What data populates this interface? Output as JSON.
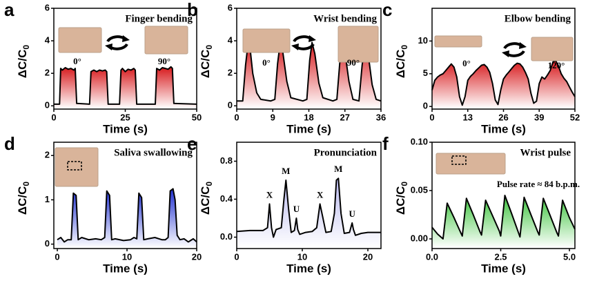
{
  "chart_data": [
    {
      "type": "line",
      "panel": "a",
      "title": "Finger bending",
      "xlabel": "Time (s)",
      "ylabel": {
        "text": "ΔC/C",
        "sub": "0"
      },
      "color": "#d7191c",
      "xlim": [
        0,
        50
      ],
      "xticks": [
        0,
        25,
        50
      ],
      "ylim": [
        -0.2,
        6
      ],
      "yticks": [
        0,
        2,
        4,
        6
      ],
      "annotations": [
        {
          "text": "0°"
        },
        {
          "text": "90°"
        }
      ],
      "x": [
        0,
        2,
        2.4,
        3,
        4,
        5,
        6,
        7,
        7.5,
        8,
        12.5,
        13,
        14,
        15,
        16,
        17,
        18,
        18.5,
        19,
        23,
        23.5,
        24,
        25,
        26,
        27,
        28,
        28.5,
        29,
        35.5,
        36,
        37,
        38,
        39,
        40,
        41,
        41.5,
        42,
        50
      ],
      "values": [
        0.1,
        0.1,
        2.3,
        2.2,
        2.35,
        2.25,
        2.3,
        2.2,
        2.3,
        0.15,
        0.1,
        2.1,
        2.2,
        2.1,
        2.2,
        2.15,
        2.2,
        2.1,
        0.1,
        0.1,
        2.2,
        2.3,
        2.1,
        2.25,
        2.2,
        2.3,
        2.2,
        0.1,
        0.1,
        2.3,
        2.2,
        2.35,
        2.3,
        2.25,
        2.4,
        2.3,
        0.15,
        0.1
      ]
    },
    {
      "type": "line",
      "panel": "b",
      "title": "Wrist bending",
      "xlabel": "Time (s)",
      "ylabel": {
        "text": "ΔC/C",
        "sub": "0"
      },
      "color": "#d7191c",
      "xlim": [
        0,
        36
      ],
      "xticks": [
        0,
        9,
        18,
        27,
        36
      ],
      "ylim": [
        -0.2,
        6
      ],
      "yticks": [
        0,
        2,
        4,
        6
      ],
      "annotations": [
        {
          "text": "0°"
        },
        {
          "text": "90°"
        }
      ],
      "x": [
        0,
        1.5,
        2.2,
        2.8,
        3.3,
        4,
        5,
        6,
        8.5,
        9.5,
        10.2,
        10.8,
        11.5,
        12.5,
        13.5,
        16.5,
        17.5,
        18.2,
        18.8,
        19.5,
        20.5,
        21.5,
        24,
        25,
        25.7,
        26.3,
        27,
        28,
        29,
        30.5,
        31.3,
        32,
        32.8,
        33.8,
        34.8,
        36
      ],
      "values": [
        0.3,
        0.3,
        2.5,
        3.8,
        3.6,
        2,
        0.8,
        0.4,
        0.3,
        0.4,
        2.6,
        3.8,
        3.3,
        1.5,
        0.5,
        0.3,
        0.4,
        2.8,
        3.9,
        3.2,
        1.4,
        0.5,
        0.3,
        0.4,
        2.6,
        3.8,
        3.3,
        1.5,
        0.4,
        0.3,
        2.5,
        3.8,
        3.2,
        1.3,
        0.4,
        0.3
      ]
    },
    {
      "type": "line",
      "panel": "c",
      "title": "Elbow bending",
      "xlabel": "Time (s)",
      "ylabel": {
        "text": "ΔC/C",
        "sub": "0"
      },
      "color": "#d7191c",
      "xlim": [
        0,
        52
      ],
      "xticks": [
        0,
        13,
        26,
        39,
        52
      ],
      "ylim": [
        -0.4,
        15
      ],
      "yticks": [
        0,
        5,
        10
      ],
      "annotations": [
        {
          "text": "0°"
        },
        {
          "text": "120°"
        }
      ],
      "x": [
        0,
        1,
        2,
        3,
        4,
        5,
        6,
        7,
        8,
        9,
        10,
        11,
        12,
        13,
        14,
        15,
        16,
        17,
        18,
        19,
        20,
        21,
        22,
        23,
        24,
        25,
        26,
        27,
        28,
        29,
        30,
        31,
        32,
        33,
        34,
        35,
        36,
        37,
        38,
        39,
        40,
        41,
        42,
        43,
        44,
        45,
        46,
        47,
        48,
        49,
        50,
        51,
        52
      ],
      "values": [
        2.5,
        4,
        4.5,
        4.8,
        5,
        5.5,
        6,
        6.5,
        6,
        4.5,
        1.5,
        0.2,
        1.5,
        4,
        4.6,
        5,
        5.5,
        5.9,
        6.3,
        6.4,
        6,
        5.2,
        3.5,
        1,
        0.3,
        2.5,
        4.2,
        4.8,
        5.3,
        5.8,
        6.3,
        6.6,
        6.5,
        6,
        5.2,
        4.2,
        2,
        0.5,
        0.8,
        3.5,
        4.5,
        4.2,
        4.8,
        5.5,
        6.8,
        7,
        6.2,
        5,
        4.3,
        3.8,
        3,
        2.2,
        1.5
      ]
    },
    {
      "type": "line",
      "panel": "d",
      "title": "Saliva swallowing",
      "xlabel": "Time (s)",
      "ylabel": {
        "text": "ΔC/C",
        "sub": "0"
      },
      "color": "#1f2fd0",
      "xlim": [
        -0.5,
        20
      ],
      "xticks": [
        0,
        10,
        20
      ],
      "ylim": [
        -0.1,
        2.3
      ],
      "yticks": [
        0,
        1,
        2
      ],
      "annotations": [],
      "x": [
        0,
        0.5,
        1,
        1.5,
        2,
        2.3,
        2.7,
        3,
        3.5,
        4.5,
        5.5,
        6.3,
        6.8,
        7.1,
        7.5,
        7.8,
        8.3,
        9.5,
        10.5,
        11,
        11.4,
        11.7,
        12.1,
        12.4,
        13,
        14,
        15,
        15.5,
        15.9,
        16.2,
        16.6,
        16.9,
        17.2,
        17.6,
        18.2,
        18.8,
        19.5,
        20
      ],
      "values": [
        0.1,
        0.15,
        0.05,
        0.1,
        0.1,
        1.15,
        1.1,
        0.1,
        0.15,
        0.1,
        0.12,
        0.1,
        0.15,
        1.2,
        1.1,
        0.1,
        0.12,
        0.08,
        0.1,
        0.15,
        0.12,
        1.15,
        1.05,
        0.1,
        0.12,
        0.15,
        0.1,
        0.1,
        0.15,
        1.2,
        1.25,
        1.0,
        0.2,
        0.1,
        0.12,
        0.05,
        0.12,
        0.05
      ]
    },
    {
      "type": "line",
      "panel": "e",
      "title": "Pronunciation",
      "xlabel": "Time (s)",
      "ylabel": {
        "text": "ΔC/C",
        "sub": "0"
      },
      "color": "#b9b9ee",
      "xlim": [
        0,
        22
      ],
      "xticks": [
        0,
        10,
        20
      ],
      "ylim": [
        -0.12,
        1.0
      ],
      "yticks": [
        {
          "value": 0,
          "label": "0.0"
        },
        {
          "value": 0.4,
          "label": "0.4"
        },
        {
          "value": 0.8,
          "label": "0.8"
        }
      ],
      "annotations": [
        {
          "text": "X",
          "x": 5
        },
        {
          "text": "M",
          "x": 7.5
        },
        {
          "text": "U",
          "x": 9.1
        },
        {
          "text": "X",
          "x": 12.7
        },
        {
          "text": "M",
          "x": 15.5
        },
        {
          "text": "U",
          "x": 17.6
        }
      ],
      "x": [
        0,
        2,
        4,
        4.7,
        5,
        5.3,
        5.6,
        6,
        6.8,
        7.2,
        7.5,
        7.9,
        8.3,
        8.8,
        9.1,
        9.3,
        9.6,
        10.5,
        11.5,
        12.2,
        12.7,
        13.1,
        13.6,
        14.4,
        14.9,
        15.2,
        15.5,
        15.9,
        16.4,
        17.2,
        17.6,
        17.8,
        18.1,
        19,
        20,
        21,
        22
      ],
      "values": [
        0.06,
        0.07,
        0.07,
        0.1,
        0.35,
        0.1,
        0,
        0.08,
        0.1,
        0.4,
        0.6,
        0.3,
        0.05,
        0.07,
        0.2,
        0.08,
        0.03,
        0.05,
        0.06,
        0.1,
        0.35,
        0.22,
        0.05,
        0.06,
        0.25,
        0.6,
        0.62,
        0.25,
        0.04,
        0.05,
        0.15,
        0.08,
        0.02,
        0.04,
        0.05,
        0.05,
        0.05
      ]
    },
    {
      "type": "line",
      "panel": "f",
      "title": "Wrist pulse",
      "xlabel": "Time (s)",
      "ylabel": {
        "text": "ΔC/C",
        "sub": "0"
      },
      "color": "#3cc43c",
      "xlim": [
        0,
        5.2
      ],
      "xticks": [
        {
          "value": 0,
          "label": "0.0"
        },
        {
          "value": 2.5,
          "label": "2.5"
        },
        {
          "value": 5,
          "label": "5.0"
        }
      ],
      "ylim": [
        -0.01,
        0.1
      ],
      "yticks": [
        {
          "value": 0,
          "label": "0.00"
        },
        {
          "value": 0.05,
          "label": "0.05"
        },
        {
          "value": 0.1,
          "label": "0.10"
        }
      ],
      "annotations": [
        {
          "text": "Pulse rate ≈ 84 b.p.m."
        }
      ],
      "x": [
        0,
        0.2,
        0.4,
        0.55,
        0.8,
        1.05,
        1.1,
        1.25,
        1.5,
        1.75,
        1.8,
        1.95,
        2.2,
        2.45,
        2.5,
        2.65,
        2.9,
        3.15,
        3.2,
        3.35,
        3.6,
        3.85,
        3.9,
        4.05,
        4.3,
        4.55,
        4.6,
        4.75,
        5.0,
        5.2
      ],
      "values": [
        0.012,
        0.005,
        0,
        0.037,
        0.022,
        0.006,
        0.003,
        0.042,
        0.025,
        0.007,
        0.004,
        0.04,
        0.024,
        0.008,
        0.003,
        0.045,
        0.026,
        0.006,
        0.002,
        0.043,
        0.025,
        0.007,
        0.004,
        0.042,
        0.024,
        0.006,
        0.003,
        0.04,
        0.022,
        0.01
      ]
    }
  ]
}
